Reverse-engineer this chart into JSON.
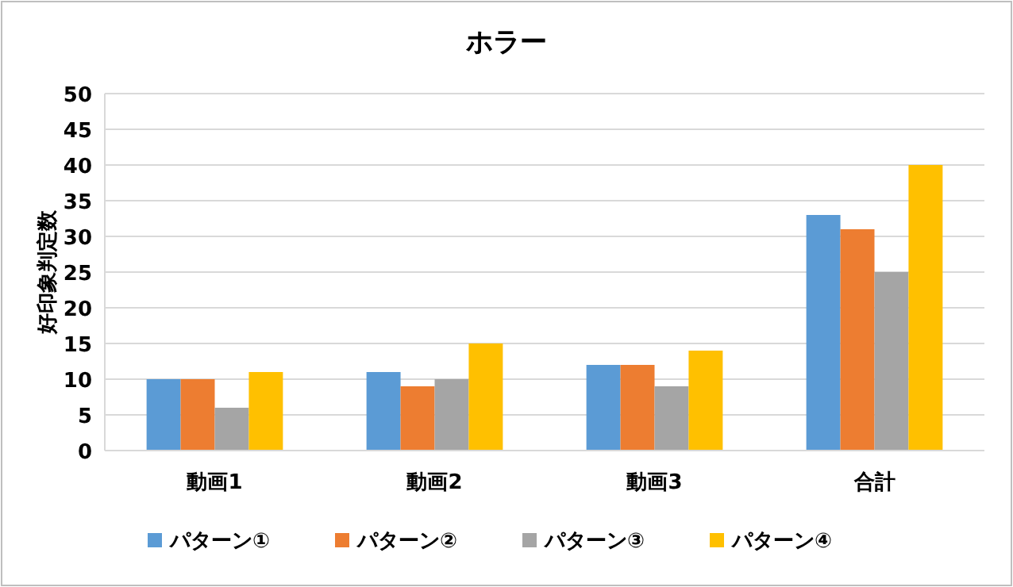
{
  "chart_data": {
    "type": "bar",
    "title": "ホラー",
    "ylabel": "好印象判定数",
    "categories": [
      "動画1",
      "動画2",
      "動画3",
      "合計"
    ],
    "series": [
      {
        "name": "パターン①",
        "color": "#5b9bd5",
        "values": [
          10,
          11,
          12,
          33
        ]
      },
      {
        "name": "パターン②",
        "color": "#ed7d31",
        "values": [
          10,
          9,
          12,
          31
        ]
      },
      {
        "name": "パターン③",
        "color": "#a5a5a5",
        "values": [
          6,
          10,
          9,
          25
        ]
      },
      {
        "name": "パターン④",
        "color": "#ffc000",
        "values": [
          11,
          15,
          14,
          40
        ]
      }
    ],
    "ylim": [
      0,
      50
    ],
    "yticks": [
      0,
      5,
      10,
      15,
      20,
      25,
      30,
      35,
      40,
      45,
      50
    ],
    "grid": "y",
    "legend": "bottom"
  }
}
